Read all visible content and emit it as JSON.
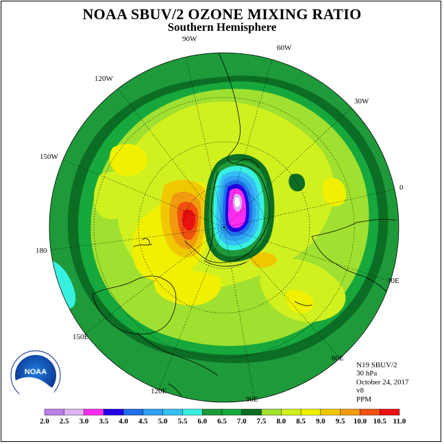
{
  "title": "NOAA SBUV/2 OZONE MIXING RATIO",
  "subtitle": "Southern Hemisphere",
  "longitude_labels": [
    "90W",
    "60W",
    "30W",
    "0",
    "30E",
    "60E",
    "90E",
    "120E",
    "150E",
    "180",
    "150W",
    "120W"
  ],
  "info": {
    "satellite": "N19 SBUV/2",
    "level": "30 hPa",
    "date": "October 24, 2017",
    "version": "v8",
    "units": "PPM"
  },
  "colorbar": {
    "labels": [
      "2.0",
      "2.5",
      "3.0",
      "3.5",
      "4.0",
      "4.5",
      "5.0",
      "5.5",
      "6.0",
      "6.5",
      "7.0",
      "7.5",
      "8.0",
      "8.5",
      "9.0",
      "9.5",
      "10.0",
      "10.5",
      "11.0"
    ],
    "colors": [
      "#b77ee8",
      "#dcb2f2",
      "#ff2cf0",
      "#2200e6",
      "#1f6fe8",
      "#2ea0f0",
      "#35c0f5",
      "#37f0e0",
      "#1e9a3a",
      "#16a83c",
      "#0c6e24",
      "#a0e030",
      "#d0f020",
      "#f0f000",
      "#f0c800",
      "#f09a10",
      "#f05010",
      "#e81010",
      "#906050"
    ]
  },
  "logo": {
    "text": "NOAA"
  }
}
